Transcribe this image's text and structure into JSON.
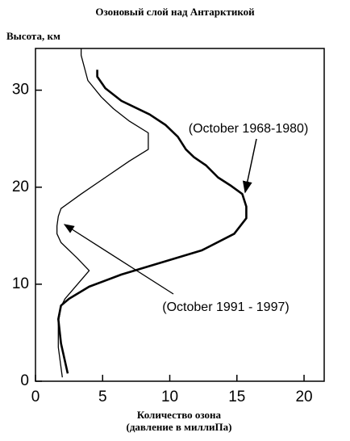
{
  "chart_data": {
    "type": "line",
    "title": "Озоновый слой над  Антарктикой",
    "y_label": "Высота, км",
    "x_label": [
      "Количество озона",
      "(давление в миллиПа)"
    ],
    "xlim": [
      0,
      21.5
    ],
    "ylim": [
      0,
      34.3
    ],
    "xticks": [
      0,
      5,
      10,
      15,
      20
    ],
    "yticks": [
      0,
      10,
      20,
      30
    ],
    "series": [
      {
        "name": "(October 1968-1980)",
        "color": "#000000",
        "width": 2.6,
        "x": [
          2.4,
          1.9,
          1.7,
          1.9,
          2.5,
          4.0,
          6.4,
          9.4,
          12.4,
          14.8,
          15.7,
          15.7,
          15.4,
          14.5,
          13.6,
          12.7,
          11.8,
          11.2,
          10.6,
          9.7,
          8.5,
          6.4,
          5.2,
          4.6,
          4.6
        ],
        "values": [
          0.8,
          3.9,
          6.4,
          7.8,
          8.5,
          9.75,
          11,
          12.25,
          13.5,
          15.2,
          16.8,
          18,
          19.3,
          20.2,
          21,
          22.25,
          23.1,
          23.9,
          25.2,
          26.4,
          27.5,
          28.9,
          30.2,
          31.4,
          32.1
        ]
      },
      {
        "name": "(October 1991 - 1997)",
        "color": "#000000",
        "width": 1.3,
        "x": [
          2.0,
          1.7,
          1.7,
          1.9,
          2.2,
          4.0,
          3.1,
          1.9,
          1.6,
          1.6,
          1.7,
          1.9,
          3.4,
          5.2,
          7.0,
          8.4,
          8.4,
          7.0,
          5.8,
          4.9,
          3.9,
          3.4,
          3.4
        ],
        "values": [
          0.4,
          3.5,
          6,
          7.7,
          8.5,
          11.4,
          12.7,
          14.3,
          15.2,
          16,
          17,
          17.8,
          19.3,
          21,
          22.7,
          23.9,
          25.6,
          26.8,
          28.1,
          29.3,
          31,
          33.6,
          34.3
        ]
      }
    ]
  }
}
